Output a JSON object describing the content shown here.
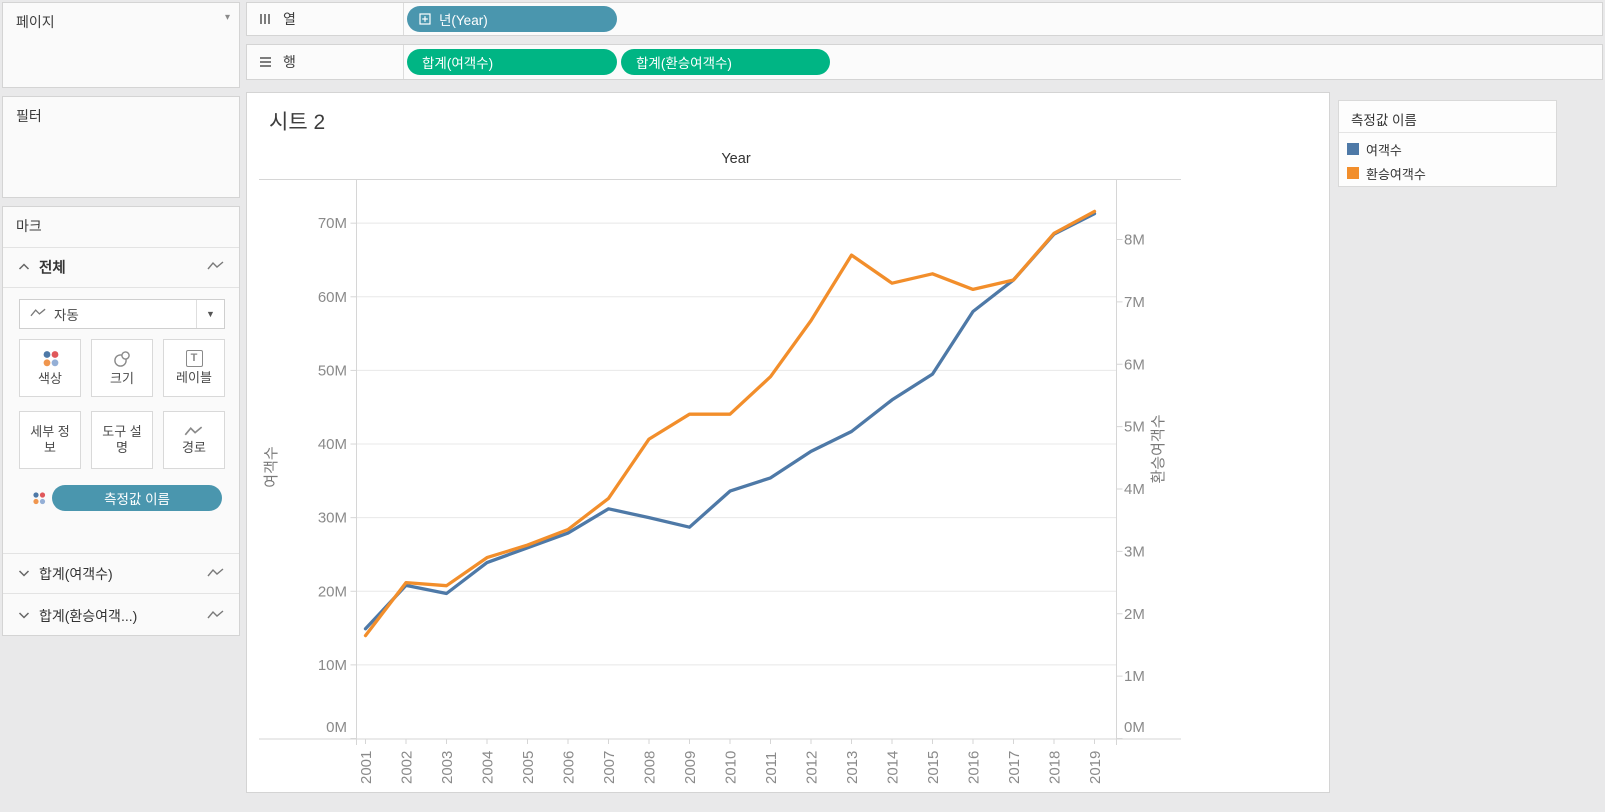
{
  "colors": {
    "dimension_pill": "#4a96ae",
    "measure_pill": "#00b584",
    "series_blue": "#4e79a7",
    "series_orange": "#f28e2b"
  },
  "sidebar": {
    "pages_label": "페이지",
    "filters_label": "필터",
    "marks": {
      "title": "마크",
      "all_label": "전체",
      "mark_type_value": "자동",
      "buttons": [
        "색상",
        "크기",
        "레이블",
        "세부 정보",
        "도구 설명",
        "경로"
      ],
      "measure_names_pill": "측정값 이름",
      "fields": [
        "합계(여객수)",
        "합계(환승여객...)"
      ]
    }
  },
  "shelves": {
    "columns_label": "열",
    "rows_label": "행",
    "columns_pills": [
      "년(Year)"
    ],
    "rows_pills": [
      "합계(여객수)",
      "합계(환승여객수)"
    ]
  },
  "sheet": {
    "title": "시트 2"
  },
  "legend": {
    "title": "측정값 이름",
    "items": [
      {
        "label": "여객수",
        "color": "#4e79a7"
      },
      {
        "label": "환승여객수",
        "color": "#f28e2b"
      }
    ]
  },
  "chart_data": {
    "type": "line",
    "title": "Year",
    "x": [
      2001,
      2002,
      2003,
      2004,
      2005,
      2006,
      2007,
      2008,
      2009,
      2010,
      2011,
      2012,
      2013,
      2014,
      2015,
      2016,
      2017,
      2018,
      2019
    ],
    "series": [
      {
        "name": "여객수",
        "axis": "left",
        "color": "#4e79a7",
        "values": [
          14.9,
          20.8,
          19.7,
          23.9,
          25.9,
          27.9,
          31.2,
          30.0,
          28.7,
          33.6,
          35.4,
          39.0,
          41.7,
          46.0,
          49.5,
          58.0,
          62.3,
          68.5,
          71.3
        ]
      },
      {
        "name": "환승여객수",
        "axis": "right",
        "color": "#f28e2b",
        "values": [
          1.65,
          2.5,
          2.45,
          2.9,
          3.1,
          3.35,
          3.85,
          4.8,
          5.2,
          5.2,
          5.8,
          6.7,
          7.75,
          7.3,
          7.45,
          7.2,
          7.35,
          8.1,
          8.45
        ]
      }
    ],
    "left_axis": {
      "title": "여객수",
      "unit": "M",
      "tick_values": [
        0,
        10,
        20,
        30,
        40,
        50,
        60,
        70
      ],
      "tick_labels": [
        "0M",
        "10M",
        "20M",
        "30M",
        "40M",
        "50M",
        "60M",
        "70M"
      ],
      "range": [
        0,
        76
      ]
    },
    "right_axis": {
      "title": "환승여객수",
      "unit": "M",
      "tick_values": [
        0,
        1,
        2,
        3,
        4,
        5,
        6,
        7,
        8
      ],
      "tick_labels": [
        "0M",
        "1M",
        "2M",
        "3M",
        "4M",
        "5M",
        "6M",
        "7M",
        "8M"
      ],
      "range": [
        0,
        8.97
      ]
    },
    "grid": "horizontal",
    "legend_position": "right"
  }
}
